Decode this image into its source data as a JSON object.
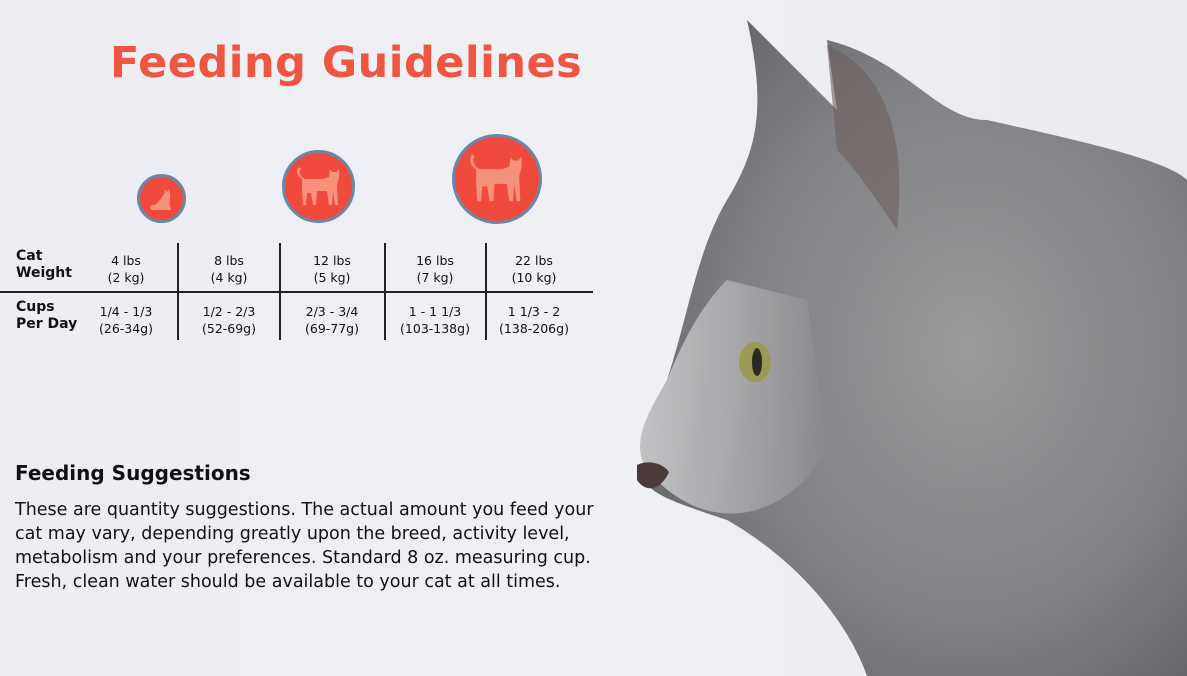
{
  "title": "Feeding Guidelines",
  "colors": {
    "accent": "#ef5642",
    "circle_fill": "#f04a3c",
    "circle_border": "#6b86a8"
  },
  "icons": [
    "cat-sitting-icon",
    "cat-standing-icon",
    "cat-standing-large-icon"
  ],
  "table": {
    "row_labels": {
      "weight_line1": "Cat",
      "weight_line2": "Weight",
      "cups_line1": "Cups",
      "cups_line2": "Per Day"
    },
    "columns": [
      {
        "lbs": "4 lbs",
        "kg": "(2 kg)",
        "cups": "1/4 - 1/3",
        "grams": "(26-34g)"
      },
      {
        "lbs": "8 lbs",
        "kg": "(4 kg)",
        "cups": "1/2 - 2/3",
        "grams": "(52-69g)"
      },
      {
        "lbs": "12 lbs",
        "kg": "(5 kg)",
        "cups": "2/3 - 3/4",
        "grams": "(69-77g)"
      },
      {
        "lbs": "16 lbs",
        "kg": "(7 kg)",
        "cups": "1 - 1 1/3",
        "grams": "(103-138g)"
      },
      {
        "lbs": "22 lbs",
        "kg": "(10 kg)",
        "cups": "1 1/3 - 2",
        "grams": "(138-206g)"
      }
    ]
  },
  "suggestions": {
    "title": "Feeding Suggestions",
    "body": "These are quantity suggestions. The actual amount you feed your cat may vary, depending greatly upon the breed, activity level, metabolism and your preferences. Standard 8 oz. measuring cup. Fresh, clean water should be available to your cat at all times."
  }
}
